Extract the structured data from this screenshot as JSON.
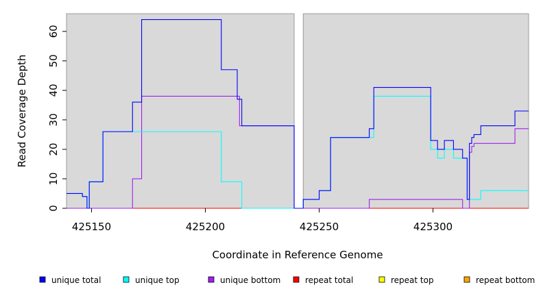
{
  "chart_data": {
    "type": "line",
    "title": "",
    "xlabel": "Coordinate in Reference Genome",
    "ylabel": "Read Coverage Depth",
    "xlim": [
      425139,
      425342
    ],
    "ylim": [
      0,
      66
    ],
    "x_ticks": [
      425150,
      425200,
      425250,
      425300
    ],
    "y_ticks": [
      0,
      10,
      20,
      30,
      40,
      50,
      60
    ],
    "grid": false,
    "legend_position": "bottom",
    "regions": [
      {
        "x_start": 425139,
        "x_end": 425239
      },
      {
        "x_start": 425243,
        "x_end": 425342
      }
    ],
    "series": [
      {
        "name": "unique total",
        "color": "#0000ff",
        "points": [
          [
            425139,
            5
          ],
          [
            425146,
            4
          ],
          [
            425148,
            0
          ],
          [
            425149,
            9
          ],
          [
            425155,
            26
          ],
          [
            425168,
            36
          ],
          [
            425172,
            64
          ],
          [
            425207,
            47
          ],
          [
            425214,
            37
          ],
          [
            425216,
            28
          ],
          [
            425239,
            0
          ],
          [
            425243,
            3
          ],
          [
            425250,
            6
          ],
          [
            425255,
            24
          ],
          [
            425272,
            27
          ],
          [
            425274,
            41
          ],
          [
            425299,
            23
          ],
          [
            425302,
            20
          ],
          [
            425305,
            23
          ],
          [
            425309,
            20
          ],
          [
            425313,
            17
          ],
          [
            425315,
            3
          ],
          [
            425316,
            22
          ],
          [
            425317,
            24
          ],
          [
            425318,
            25
          ],
          [
            425321,
            28
          ],
          [
            425336,
            33
          ],
          [
            425342,
            33
          ]
        ]
      },
      {
        "name": "unique top",
        "color": "#00ffff",
        "points": [
          [
            425139,
            5
          ],
          [
            425146,
            4
          ],
          [
            425148,
            0
          ],
          [
            425149,
            9
          ],
          [
            425155,
            26
          ],
          [
            425207,
            9
          ],
          [
            425216,
            0
          ],
          [
            425239,
            0
          ],
          [
            425243,
            3
          ],
          [
            425250,
            6
          ],
          [
            425255,
            24
          ],
          [
            425272,
            24
          ],
          [
            425274,
            38
          ],
          [
            425299,
            20
          ],
          [
            425302,
            17
          ],
          [
            425305,
            20
          ],
          [
            425309,
            17
          ],
          [
            425315,
            3
          ],
          [
            425321,
            6
          ],
          [
            425342,
            6
          ]
        ]
      },
      {
        "name": "unique bottom",
        "color": "#a020f0",
        "points": [
          [
            425139,
            0
          ],
          [
            425168,
            10
          ],
          [
            425172,
            38
          ],
          [
            425215,
            28
          ],
          [
            425239,
            0
          ],
          [
            425272,
            3
          ],
          [
            425313,
            0
          ],
          [
            425316,
            19
          ],
          [
            425317,
            21
          ],
          [
            425318,
            22
          ],
          [
            425336,
            27
          ],
          [
            425342,
            27
          ]
        ]
      },
      {
        "name": "repeat total",
        "color": "#ff0000",
        "points": [
          [
            425139,
            0
          ],
          [
            425342,
            0
          ]
        ]
      },
      {
        "name": "repeat top",
        "color": "#ffff00",
        "points": [
          [
            425139,
            0
          ],
          [
            425342,
            0
          ]
        ]
      },
      {
        "name": "repeat bottom",
        "color": "#ffa500",
        "points": [
          [
            425139,
            0
          ],
          [
            425342,
            0
          ]
        ]
      }
    ]
  }
}
